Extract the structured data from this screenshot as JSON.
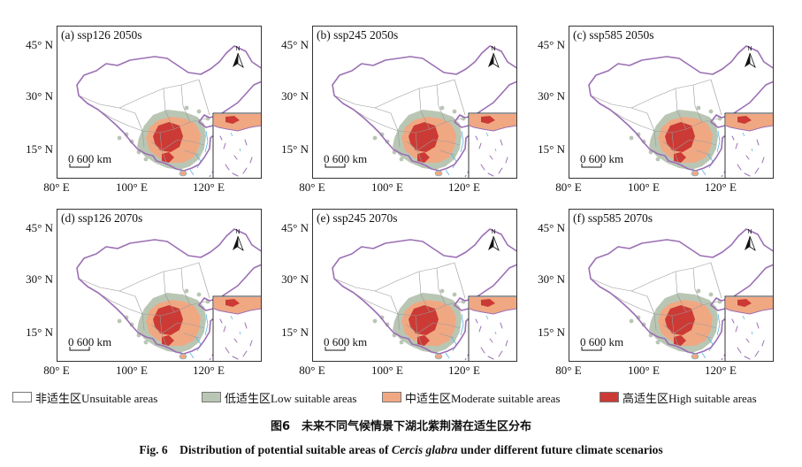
{
  "figure": {
    "panels": [
      {
        "label": "(a) ssp126  2050s"
      },
      {
        "label": "(b) ssp245  2050s"
      },
      {
        "label": "(c) ssp585  2050s"
      },
      {
        "label": "(d) ssp126  2070s"
      },
      {
        "label": "(e) ssp245  2070s"
      },
      {
        "label": "(f) ssp585  2070s"
      }
    ],
    "lat_ticks": [
      "45° N",
      "30° N",
      "15° N"
    ],
    "lon_ticks": [
      "80° E",
      "100° E",
      "120° E"
    ],
    "scale_bar": "0 600 km",
    "north_letter": "N"
  },
  "legend": [
    {
      "label": "非适生区Unsuitable areas",
      "color": "#ffffff"
    },
    {
      "label": "低适生区Low suitable areas",
      "color": "#b9c6b4"
    },
    {
      "label": "中适生区Moderate suitable areas",
      "color": "#f0a882"
    },
    {
      "label": "高适生区High suitable areas",
      "color": "#cc3a35"
    }
  ],
  "caption": {
    "cn": "图6　未来不同气候情景下湖北紫荆潜在适生区分布",
    "en_prefix": "Fig. 6　Distribution of potential suitable areas of ",
    "en_species": "Cercis glabra",
    "en_suffix": " under different future climate scenarios"
  },
  "colors": {
    "border": "#9b6fb4",
    "internal": "#9a9a9a",
    "water": "#5ab4e0",
    "low": "#b9c6b4",
    "moderate": "#f0a882",
    "high": "#cc3a35"
  }
}
